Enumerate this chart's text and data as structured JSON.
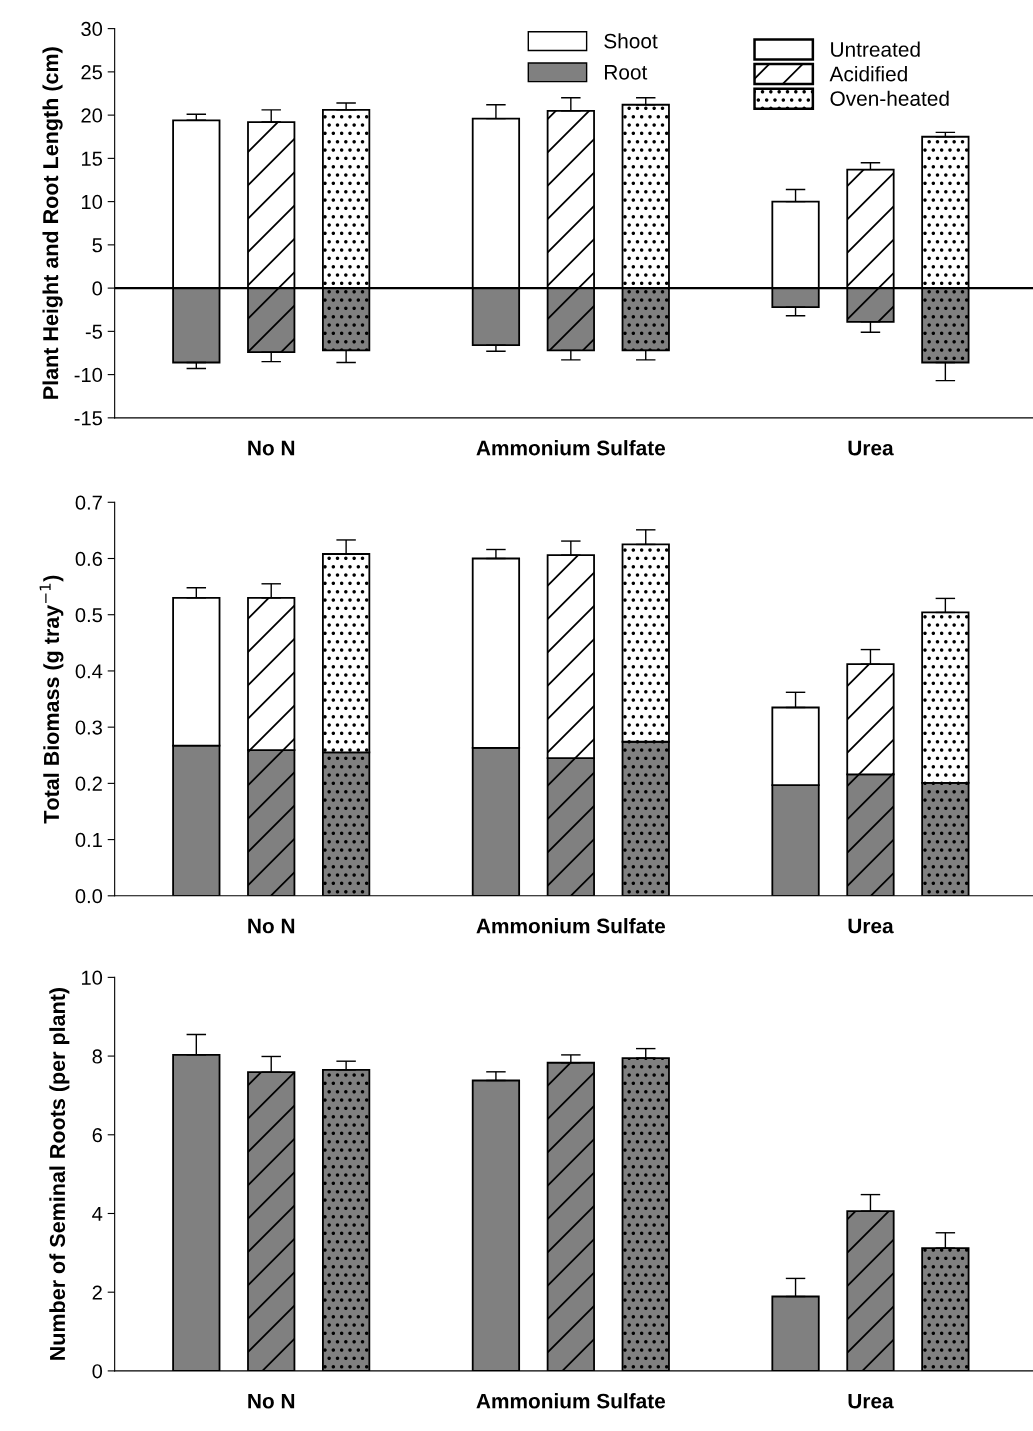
{
  "chart_data": [
    {
      "type": "bar",
      "ylabel": "Plant Height and Root Length (cm)",
      "categories": [
        null,
        "No N",
        null,
        null,
        null,
        "Ammonium Sulfate",
        null,
        null,
        null,
        "Urea",
        null
      ],
      "stacked": true,
      "ylim": [
        -15,
        30
      ],
      "yticks": [
        -15,
        -10,
        -5,
        0,
        5,
        10,
        15,
        20,
        25,
        30
      ],
      "legend": "top right",
      "grid": false,
      "annotations": [
        "Untreated",
        "Acidified",
        "Oven-heated"
      ],
      "ref_lines": [
        {
          "axis": "y",
          "value": 0,
          "color": "#000000"
        }
      ],
      "series": [
        {
          "name": "Shoot",
          "color": "#ffffff",
          "values": [
            19.4,
            19.2,
            20.6,
            null,
            19.6,
            20.5,
            21.2,
            null,
            10.0,
            13.7,
            17.5
          ],
          "errors": [
            [
              19.4,
              20.1
            ],
            [
              19.2,
              20.6
            ],
            [
              20.6,
              21.4
            ],
            null,
            [
              19.6,
              21.2
            ],
            [
              20.5,
              22.0
            ],
            [
              21.2,
              22.0
            ],
            null,
            [
              10.0,
              11.4
            ],
            [
              13.7,
              14.5
            ],
            [
              17.5,
              18.0
            ]
          ]
        },
        {
          "name": "Root",
          "color": "#808080",
          "values": [
            -8.6,
            -7.4,
            -7.2,
            null,
            -6.6,
            -7.2,
            -7.2,
            null,
            -2.2,
            -3.9,
            -8.6
          ],
          "errors": [
            [
              -9.3,
              -8.6
            ],
            [
              -8.5,
              -7.4
            ],
            [
              -8.6,
              -7.2
            ],
            null,
            [
              -7.3,
              -6.6
            ],
            [
              -8.3,
              -7.2
            ],
            [
              -8.3,
              -7.2
            ],
            null,
            [
              -3.2,
              -2.2
            ],
            [
              -5.1,
              -3.9
            ],
            [
              -10.7,
              -8.6
            ]
          ]
        }
      ]
    },
    {
      "type": "bar",
      "ylabel": "Total Biomass (g tray$^{−1}$)",
      "categories": [
        null,
        "No N",
        null,
        null,
        null,
        "Ammonium Sulfate",
        null,
        null,
        null,
        "Urea",
        null
      ],
      "stacked": true,
      "ylim": [
        0,
        0.7
      ],
      "yticks": [
        {
          "value": 0,
          "label": "0.0"
        },
        0.1,
        0.2,
        0.3,
        0.4,
        0.5,
        0.6,
        0.7
      ],
      "grid": false,
      "series": [
        {
          "color": "#808080",
          "values": [
            0.267,
            0.259,
            0.255,
            null,
            0.263,
            0.245,
            0.274,
            null,
            0.197,
            0.216,
            0.201
          ]
        },
        {
          "color": "#ffffff",
          "values": [
            0.263,
            0.271,
            0.353,
            null,
            0.337,
            0.361,
            0.351,
            null,
            0.138,
            0.196,
            0.303
          ],
          "errors": [
            [
              0.53,
              0.548
            ],
            [
              0.53,
              0.555
            ],
            [
              0.608,
              0.633
            ],
            null,
            [
              0.6,
              0.616
            ],
            [
              0.606,
              0.631
            ],
            [
              0.625,
              0.651
            ],
            null,
            [
              0.335,
              0.362
            ],
            [
              0.412,
              0.438
            ],
            [
              0.504,
              0.529
            ]
          ]
        }
      ]
    },
    {
      "type": "bar",
      "ylabel": "Number of Seminal Roots (per plant)",
      "categories": [
        null,
        "No N",
        null,
        null,
        null,
        "Ammonium Sulfate",
        null,
        null,
        null,
        "Urea",
        null
      ],
      "ylim": [
        0,
        10
      ],
      "yticks": [
        0,
        2,
        4,
        6,
        8,
        10
      ],
      "grid": false,
      "series": [
        {
          "color": "#808080",
          "values": [
            8.03,
            7.59,
            7.65,
            null,
            7.38,
            7.83,
            7.95,
            null,
            1.89,
            4.06,
            3.12
          ],
          "errors": [
            [
              8.03,
              8.55
            ],
            [
              7.59,
              7.99
            ],
            [
              7.65,
              7.87
            ],
            null,
            [
              7.38,
              7.6
            ],
            [
              7.83,
              8.03
            ],
            [
              7.95,
              8.19
            ],
            null,
            [
              1.89,
              2.35
            ],
            [
              4.06,
              4.48
            ],
            [
              3.12,
              3.51
            ]
          ]
        }
      ]
    }
  ]
}
